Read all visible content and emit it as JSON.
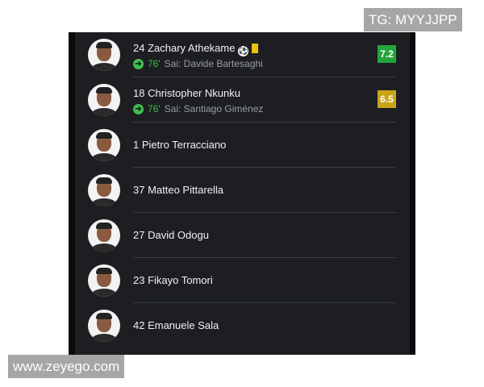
{
  "watermarks": {
    "top_right": "TG: MYYJJPP",
    "bottom_left": "www.zeyego.com"
  },
  "colors": {
    "rating_good": "#22a63a",
    "rating_avg": "#c9a416",
    "sub_green": "#3fbf4e",
    "yellow_card": "#e8c20c"
  },
  "players": [
    {
      "name": "24 Zachary Athekame",
      "icons": [
        "goal-ball-icon",
        "yellow-card-icon"
      ],
      "sub_minute": "76'",
      "sub_text": "Sai: Davide Bartesaghi",
      "rating": "7.2",
      "rating_color": "#22a63a"
    },
    {
      "name": "18 Christopher Nkunku",
      "icons": [],
      "sub_minute": "76'",
      "sub_text": "Sai: Santiago Giménez",
      "rating": "6.5",
      "rating_color": "#c9a416"
    },
    {
      "name": "1 Pietro Terracciano"
    },
    {
      "name": "37 Matteo Pittarella"
    },
    {
      "name": "27 David Odogu"
    },
    {
      "name": "23 Fikayo Tomori"
    },
    {
      "name": "42 Emanuele Sala"
    }
  ]
}
